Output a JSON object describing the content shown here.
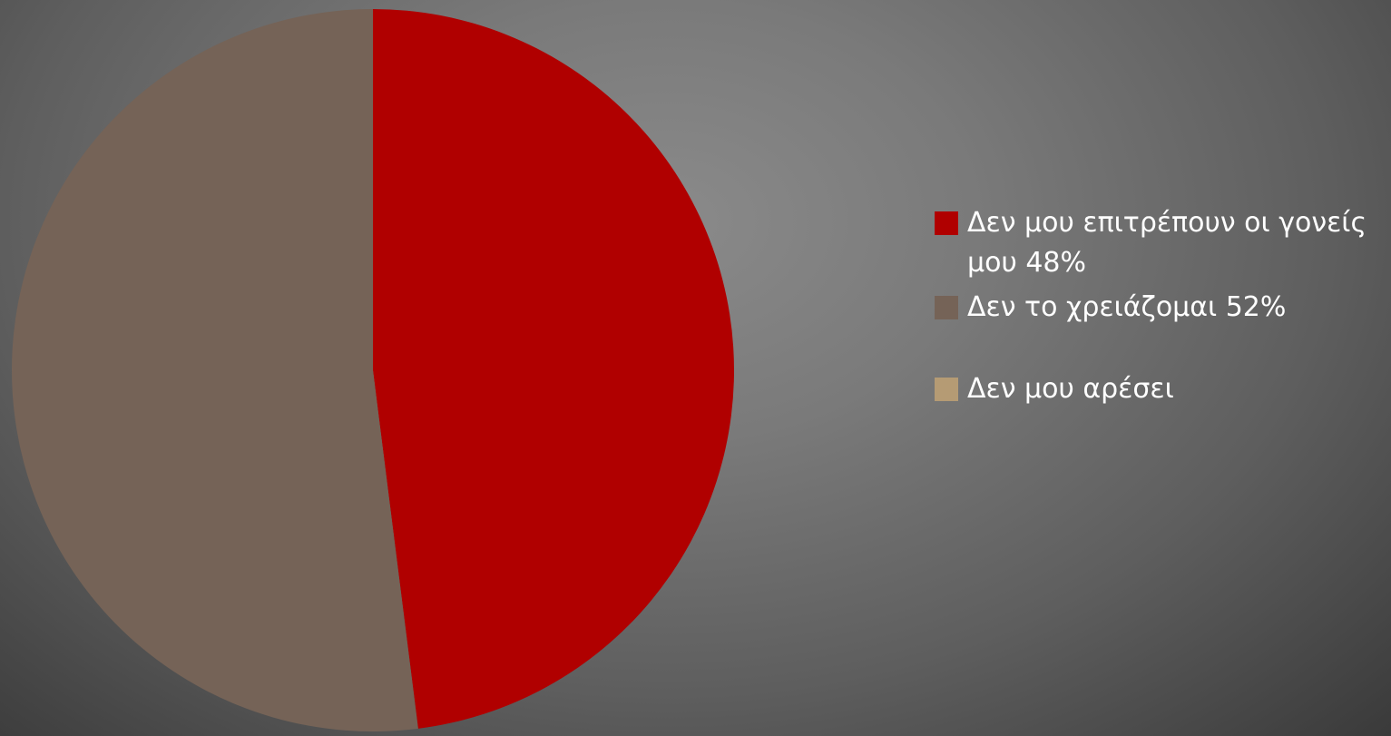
{
  "chart_data": {
    "type": "pie",
    "title": "",
    "series": [
      {
        "values": [
          48,
          52,
          0
        ]
      }
    ],
    "categories": [
      "Δεν μου επιτρέπουν οι γονείς μου 48%",
      "Δεν το χρειάζομαι 52%",
      "Δεν μου αρέσει"
    ],
    "colors": [
      "#b00000",
      "#756357",
      "#b59b74"
    ],
    "legend_position": "right",
    "start_angle": "top",
    "direction": "clockwise"
  },
  "legend": {
    "items": [
      {
        "label": "Δεν μου επιτρέπουν οι γονείς μου 48%",
        "color": "#b00000",
        "icon": "square-swatch"
      },
      {
        "label": "Δεν το χρειάζομαι 52%",
        "color": "#756357",
        "icon": "square-swatch"
      },
      {
        "label": "Δεν μου αρέσει",
        "color": "#b59b74",
        "icon": "square-swatch"
      }
    ]
  }
}
